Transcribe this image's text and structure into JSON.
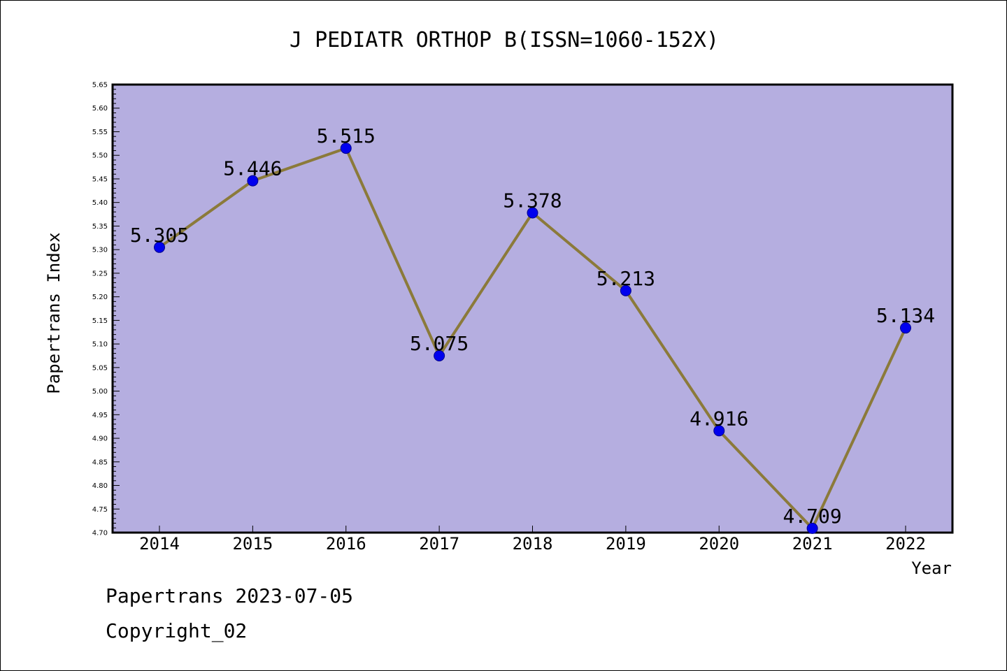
{
  "chart_data": {
    "type": "line",
    "title": "J PEDIATR ORTHOP B(ISSN=1060-152X)",
    "xlabel": "Year",
    "ylabel": "Papertrans Index",
    "ylim": [
      4.7,
      5.65
    ],
    "y_ticks": [
      "4.70",
      "4.75",
      "4.80",
      "4.85",
      "4.90",
      "4.95",
      "5.00",
      "5.05",
      "5.10",
      "5.15",
      "5.20",
      "5.25",
      "5.30",
      "5.35",
      "5.40",
      "5.45",
      "5.50",
      "5.55",
      "5.60",
      "5.65"
    ],
    "categories": [
      "2014",
      "2015",
      "2016",
      "2017",
      "2018",
      "2019",
      "2020",
      "2021",
      "2022"
    ],
    "values": [
      5.305,
      5.446,
      5.515,
      5.075,
      5.378,
      5.213,
      4.916,
      4.709,
      5.134
    ],
    "value_labels": [
      "5.305",
      "5.446",
      "5.515",
      "5.075",
      "5.378",
      "5.213",
      "4.916",
      "4.709",
      "5.134"
    ],
    "grid": false,
    "colors": {
      "plot_background": "#b5aee0",
      "line": "#8b7a3a",
      "marker": "#0000ee",
      "marker_edge": "#00008b"
    }
  },
  "footer": {
    "date_text": "Papertrans 2023-07-05",
    "copyright_text": "Copyright_02"
  }
}
